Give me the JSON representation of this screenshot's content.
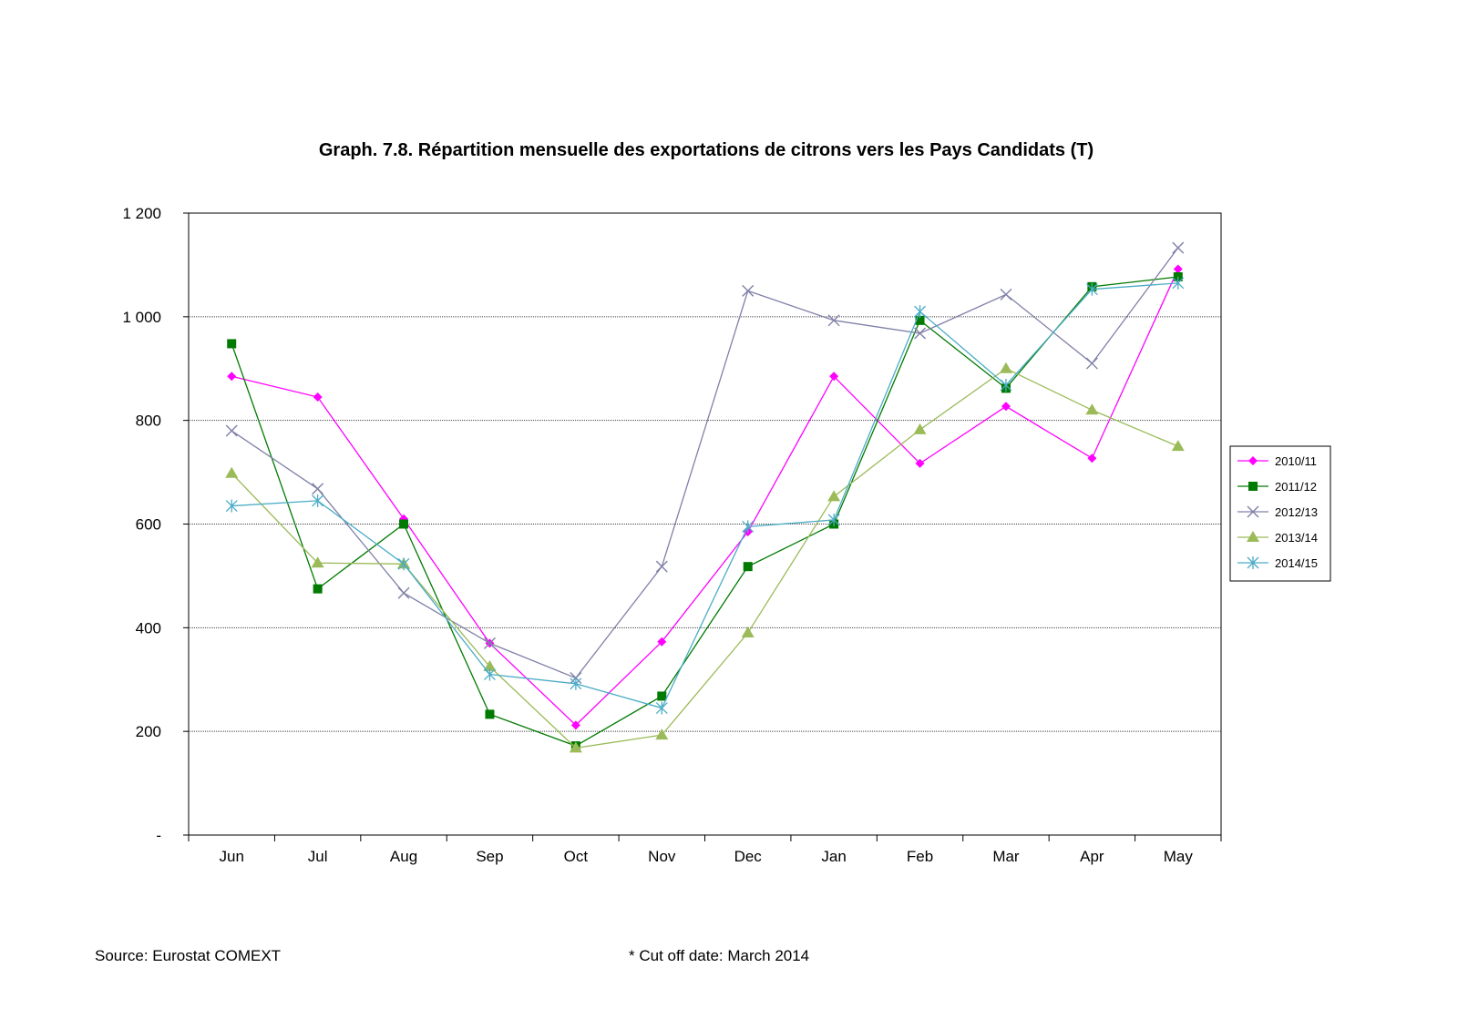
{
  "chart_data": {
    "type": "line",
    "title": "Graph. 7.8. Répartition mensuelle des exportations de citrons vers les Pays Candidats (T)",
    "categories": [
      "Jun",
      "Jul",
      "Aug",
      "Sep",
      "Oct",
      "Nov",
      "Dec",
      "Jan",
      "Feb",
      "Mar",
      "Apr",
      "May"
    ],
    "ylim": [
      0,
      1200
    ],
    "yticks": [
      0,
      200,
      400,
      600,
      800,
      1000,
      1200
    ],
    "ytick_labels": [
      "-",
      "200",
      "400",
      "600",
      "800",
      "1 000",
      "1 200"
    ],
    "xlabel": "",
    "ylabel": "",
    "grid": "horizontal",
    "legend": "right",
    "series": [
      {
        "name": "2010/11",
        "color": "#ff00ff",
        "marker": "diamond",
        "values": [
          885,
          845,
          610,
          370,
          212,
          373,
          585,
          885,
          717,
          827,
          727,
          1092
        ]
      },
      {
        "name": "2011/12",
        "color": "#007a00",
        "marker": "square",
        "values": [
          948,
          475,
          600,
          233,
          172,
          268,
          518,
          600,
          993,
          862,
          1058,
          1077
        ]
      },
      {
        "name": "2012/13",
        "color": "#8080a8",
        "marker": "x",
        "values": [
          780,
          668,
          467,
          370,
          303,
          518,
          1050,
          993,
          968,
          1043,
          910,
          1133
        ]
      },
      {
        "name": "2013/14",
        "color": "#9bbb59",
        "marker": "triangle",
        "values": [
          698,
          525,
          523,
          325,
          168,
          193,
          390,
          653,
          782,
          900,
          820,
          750
        ]
      },
      {
        "name": "2014/15",
        "color": "#4bacc6",
        "marker": "star",
        "values": [
          635,
          645,
          523,
          310,
          292,
          245,
          595,
          608,
          1010,
          868,
          1053,
          1065
        ]
      }
    ]
  },
  "footer": {
    "source": "Source:  Eurostat COMEXT",
    "cutoff": "* Cut off date: March 2014"
  }
}
